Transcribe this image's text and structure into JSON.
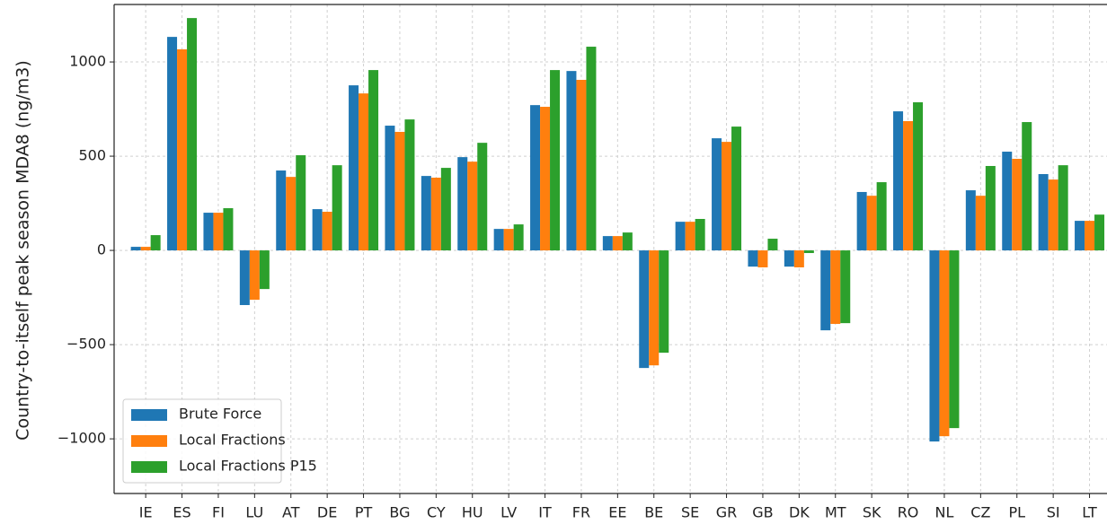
{
  "chart_data": {
    "type": "bar",
    "ylabel": "Country-to-itself peak season MDA8 (ng/m3)",
    "categories": [
      "IE",
      "ES",
      "FI",
      "LU",
      "AT",
      "DE",
      "PT",
      "BG",
      "CY",
      "HU",
      "LV",
      "IT",
      "FR",
      "EE",
      "BE",
      "SE",
      "GR",
      "GB",
      "DK",
      "MT",
      "SK",
      "RO",
      "NL",
      "CZ",
      "PL",
      "SI",
      "LT"
    ],
    "series": [
      {
        "name": "Brute Force",
        "color": "#1f77b4",
        "values": [
          19,
          1133,
          200,
          -290,
          424,
          219,
          876,
          662,
          395,
          495,
          114,
          771,
          952,
          76,
          -624,
          152,
          595,
          -86,
          -86,
          -424,
          310,
          738,
          -1014,
          319,
          524,
          405,
          157
        ]
      },
      {
        "name": "Local Fractions",
        "color": "#ff7f0e",
        "values": [
          19,
          1067,
          200,
          -262,
          390,
          205,
          833,
          629,
          386,
          471,
          114,
          762,
          905,
          76,
          -610,
          152,
          576,
          -90,
          -90,
          -390,
          290,
          686,
          -986,
          290,
          486,
          376,
          157
        ]
      },
      {
        "name": "Local Fractions P15",
        "color": "#2ca02c",
        "values": [
          81,
          1233,
          224,
          -205,
          505,
          452,
          957,
          695,
          438,
          571,
          138,
          957,
          1081,
          95,
          -543,
          167,
          657,
          62,
          -14,
          -386,
          362,
          786,
          -943,
          448,
          681,
          452,
          190
        ]
      }
    ],
    "ylim": [
      -1290,
      1305
    ],
    "yticks": [
      {
        "value": -1000,
        "label": "−1000"
      },
      {
        "value": -500,
        "label": "−500"
      },
      0,
      500,
      1000
    ],
    "grid": true,
    "legend": "lower left"
  }
}
